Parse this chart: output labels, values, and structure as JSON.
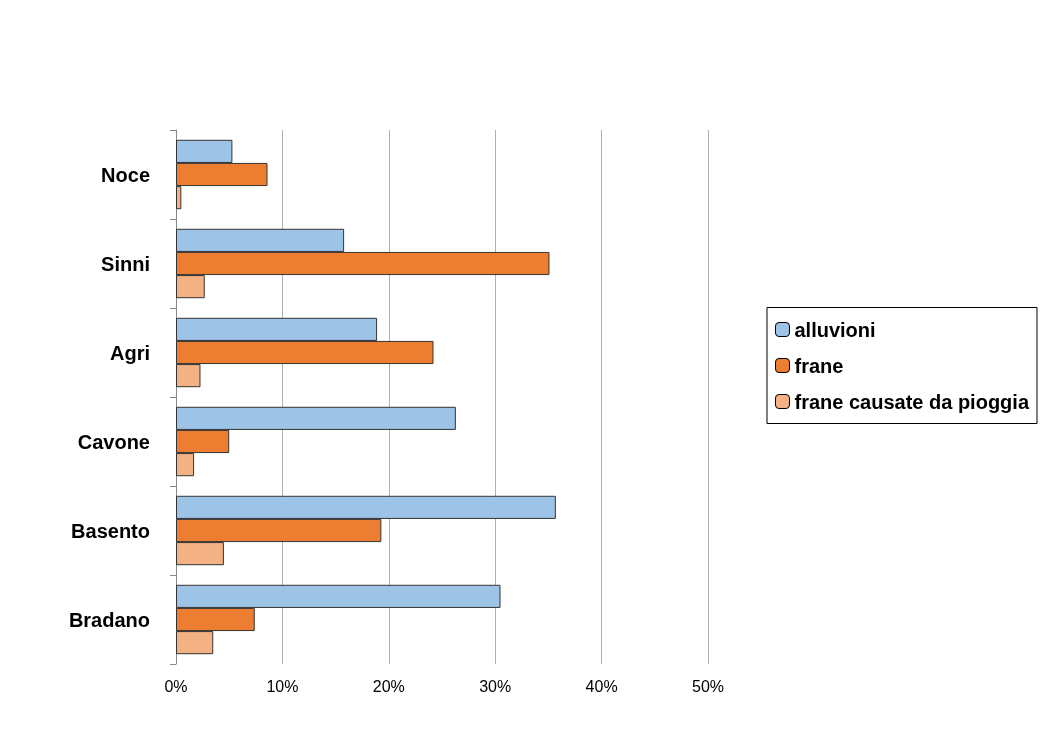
{
  "chart_data": {
    "type": "bar",
    "orientation": "horizontal",
    "categories": [
      "Noce",
      "Sinni",
      "Agri",
      "Cavone",
      "Basento",
      "Bradano"
    ],
    "series": [
      {
        "name": "alluvioni",
        "color": "#9dc3e6",
        "values": [
          5.3,
          15.8,
          18.9,
          26.3,
          35.7,
          30.5
        ]
      },
      {
        "name": "frane",
        "color": "#ed7d31",
        "values": [
          8.6,
          35.1,
          24.2,
          5.0,
          19.3,
          7.4
        ]
      },
      {
        "name": "frane causate da pioggia",
        "color": "#f4b183",
        "values": [
          0.5,
          2.7,
          2.3,
          1.7,
          4.5,
          3.5
        ]
      }
    ],
    "xlim": [
      0,
      50
    ],
    "xticks": [
      {
        "value": 0,
        "label": "0%"
      },
      {
        "value": 10,
        "label": "10%"
      },
      {
        "value": 20,
        "label": "20%"
      },
      {
        "value": 30,
        "label": "30%"
      },
      {
        "value": 40,
        "label": "40%"
      },
      {
        "value": 50,
        "label": "50%"
      }
    ],
    "grid": "x",
    "legend": "right"
  }
}
